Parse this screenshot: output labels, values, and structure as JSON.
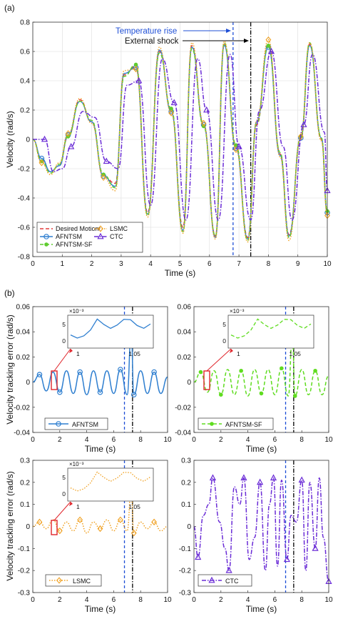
{
  "chart_data": [
    {
      "id": "a",
      "type": "line",
      "panel_label": "(a)",
      "xlabel": "Time (s)",
      "ylabel": "Velocity (rad/s)",
      "xlim": [
        0,
        10
      ],
      "ylim": [
        -0.8,
        0.8
      ],
      "xticks": [
        "0",
        "1",
        "2",
        "3",
        "4",
        "5",
        "6",
        "7",
        "8",
        "9",
        "10"
      ],
      "yticks": [
        "-0.8",
        "-0.6",
        "-0.4",
        "-0.2",
        "0",
        "0.2",
        "0.4",
        "0.6",
        "0.8"
      ],
      "grid": true,
      "legend_position": "bottom-left",
      "annotations": [
        {
          "text": "Temperature rise",
          "x": 6.8,
          "color": "#1f4fd6",
          "style": "dashed"
        },
        {
          "text": "External shock",
          "x": 7.4,
          "color": "#000000",
          "style": "dashdot"
        }
      ],
      "series": [
        {
          "name": "Desired Motiont",
          "color": "#e23b3b",
          "style": "dashed",
          "marker": "none",
          "x": [
            0,
            0.3,
            0.6,
            0.9,
            1.2,
            1.6,
            2.0,
            2.4,
            2.8,
            3.1,
            3.5,
            3.9,
            4.3,
            4.7,
            5.1,
            5.4,
            5.8,
            6.2,
            6.5,
            6.9,
            7.3,
            7.6,
            8.0,
            8.4,
            8.7,
            9.1,
            9.4,
            9.8,
            10
          ],
          "y": [
            0,
            -0.14,
            -0.22,
            -0.18,
            0.02,
            0.27,
            0.12,
            -0.25,
            -0.3,
            0.44,
            0.5,
            -0.5,
            0.6,
            0.2,
            -0.6,
            0.64,
            0.1,
            -0.66,
            0.65,
            -0.05,
            -0.67,
            0.1,
            0.65,
            -0.1,
            -0.65,
            0.0,
            0.65,
            0.0,
            -0.5
          ]
        },
        {
          "name": "AFNTSM",
          "color": "#2f7fd0",
          "style": "solid",
          "marker": "circle",
          "x": [
            0,
            0.3,
            0.6,
            0.9,
            1.2,
            1.6,
            2.0,
            2.4,
            2.8,
            3.1,
            3.5,
            3.9,
            4.3,
            4.7,
            5.1,
            5.4,
            5.8,
            6.2,
            6.5,
            6.9,
            7.3,
            7.6,
            8.0,
            8.4,
            8.7,
            9.1,
            9.4,
            9.8,
            10
          ],
          "y": [
            0,
            -0.13,
            -0.22,
            -0.18,
            0.03,
            0.26,
            0.12,
            -0.25,
            -0.32,
            0.45,
            0.49,
            -0.51,
            0.61,
            0.19,
            -0.62,
            0.63,
            0.1,
            -0.67,
            0.64,
            -0.06,
            -0.68,
            0.12,
            0.63,
            -0.11,
            -0.66,
            0.01,
            0.64,
            0.01,
            -0.5
          ]
        },
        {
          "name": "AFNTSM-SF",
          "color": "#5fcc2f",
          "style": "dashed",
          "marker": "dot",
          "x": [
            0,
            0.3,
            0.6,
            0.9,
            1.2,
            1.6,
            2.0,
            2.4,
            2.8,
            3.1,
            3.5,
            3.9,
            4.3,
            4.7,
            5.1,
            5.4,
            5.8,
            6.2,
            6.5,
            6.9,
            7.3,
            7.6,
            8.0,
            8.4,
            8.7,
            9.1,
            9.4,
            9.8,
            10
          ],
          "y": [
            0,
            -0.15,
            -0.23,
            -0.17,
            0.02,
            0.26,
            0.13,
            -0.24,
            -0.33,
            0.43,
            0.51,
            -0.52,
            0.59,
            0.21,
            -0.63,
            0.62,
            0.09,
            -0.66,
            0.66,
            -0.04,
            -0.69,
            0.11,
            0.64,
            -0.09,
            -0.67,
            0.02,
            0.66,
            0.01,
            -0.49
          ]
        },
        {
          "name": "LSMC",
          "color": "#f0a020",
          "style": "dotted",
          "marker": "diamond",
          "x": [
            0,
            0.3,
            0.6,
            0.9,
            1.2,
            1.6,
            2.0,
            2.4,
            2.8,
            3.1,
            3.5,
            3.9,
            4.3,
            4.7,
            5.1,
            5.4,
            5.8,
            6.2,
            6.5,
            6.9,
            7.3,
            7.6,
            8.0,
            8.4,
            8.7,
            9.1,
            9.4,
            9.8,
            10
          ],
          "y": [
            0,
            -0.16,
            -0.24,
            -0.16,
            0.04,
            0.28,
            0.11,
            -0.26,
            -0.35,
            0.47,
            0.48,
            -0.53,
            0.63,
            0.18,
            -0.64,
            0.66,
            0.11,
            -0.68,
            0.67,
            -0.07,
            -0.7,
            0.13,
            0.68,
            -0.12,
            -0.69,
            0.02,
            0.66,
            -0.01,
            -0.52
          ]
        },
        {
          "name": "CTC",
          "color": "#6a2bd6",
          "style": "dashdot",
          "marker": "triangle",
          "x": [
            0,
            0.4,
            0.7,
            1.0,
            1.3,
            1.7,
            2.1,
            2.5,
            2.9,
            3.2,
            3.6,
            4.0,
            4.4,
            4.8,
            5.2,
            5.6,
            5.9,
            6.3,
            6.7,
            7.0,
            7.4,
            7.7,
            8.1,
            8.5,
            8.8,
            9.2,
            9.5,
            9.9,
            10
          ],
          "y": [
            0,
            0,
            -0.22,
            -0.2,
            -0.05,
            0.19,
            0.15,
            -0.15,
            -0.2,
            0.37,
            0.4,
            -0.45,
            0.55,
            0.25,
            -0.55,
            0.55,
            0.2,
            -0.55,
            0.58,
            -0.05,
            -0.55,
            0.2,
            0.6,
            -0.05,
            -0.55,
            0.1,
            0.58,
            0.05,
            -0.35
          ]
        }
      ]
    },
    {
      "id": "b1",
      "type": "line",
      "panel_label": "(b)",
      "xlabel": "Time (s)",
      "ylabel": "Velocity tracking error (rad/s)",
      "xlim": [
        0,
        10
      ],
      "ylim": [
        -0.04,
        0.06
      ],
      "xticks": [
        "0",
        "2",
        "4",
        "6",
        "8",
        "10"
      ],
      "yticks": [
        "-0.04",
        "-0.02",
        "0",
        "0.02",
        "0.04",
        "0.06"
      ],
      "inset": {
        "xticks": [
          "1",
          "1.05"
        ],
        "yticks": [
          "0",
          "5"
        ],
        "exponent": "×10⁻³"
      },
      "series": [
        {
          "name": "AFNTSM",
          "color": "#2f7fd0",
          "style": "solid",
          "marker": "circle",
          "x": [
            0,
            0.5,
            1,
            1.5,
            2,
            2.5,
            3,
            3.5,
            4,
            4.5,
            5,
            5.5,
            6,
            6.5,
            7,
            7.3,
            7.5,
            8,
            8.5,
            9,
            9.5,
            10
          ],
          "y": [
            0,
            0.006,
            -0.007,
            0.008,
            -0.008,
            0.009,
            -0.009,
            0.008,
            -0.01,
            0.009,
            -0.008,
            0.009,
            -0.009,
            0.01,
            -0.01,
            0.038,
            -0.01,
            0.009,
            -0.009,
            0.008,
            -0.009,
            0.004
          ]
        }
      ]
    },
    {
      "id": "b2",
      "type": "line",
      "xlabel": "Time (s)",
      "ylabel": "",
      "xlim": [
        0,
        10
      ],
      "ylim": [
        -0.04,
        0.06
      ],
      "xticks": [
        "0",
        "2",
        "4",
        "6",
        "8",
        "10"
      ],
      "yticks": [
        "-0.04",
        "-0.02",
        "0",
        "0.02",
        "0.04",
        "0.06"
      ],
      "inset": {
        "xticks": [
          "1",
          "1.05"
        ],
        "yticks": [
          "0",
          "5"
        ],
        "exponent": "×10⁻³"
      },
      "series": [
        {
          "name": "AFNTSM-SF",
          "color": "#5fdc1f",
          "style": "dashed",
          "marker": "dot",
          "x": [
            0,
            0.5,
            1,
            1.5,
            2,
            2.5,
            3,
            3.5,
            4,
            4.5,
            5,
            5.5,
            6,
            6.5,
            7,
            7.3,
            7.5,
            8,
            8.5,
            9,
            9.5,
            10
          ],
          "y": [
            0,
            0.008,
            -0.008,
            0.009,
            -0.01,
            0.01,
            -0.01,
            0.009,
            -0.011,
            0.01,
            -0.009,
            0.01,
            -0.01,
            0.011,
            -0.011,
            0.037,
            -0.011,
            0.01,
            -0.01,
            0.009,
            -0.01,
            0.005
          ]
        }
      ]
    },
    {
      "id": "b3",
      "type": "line",
      "xlabel": "Time (s)",
      "ylabel": "Velocity tracking error (rad/s)",
      "xlim": [
        0,
        10
      ],
      "ylim": [
        -0.3,
        0.3
      ],
      "xticks": [
        "0",
        "2",
        "4",
        "6",
        "8",
        "10"
      ],
      "yticks": [
        "-0.3",
        "-0.2",
        "-0.1",
        "0",
        "0.1",
        "0.2",
        "0.3"
      ],
      "inset": {
        "xticks": [
          "1",
          "1.05"
        ],
        "yticks": [
          "0",
          "5"
        ],
        "exponent": "×10⁻³"
      },
      "series": [
        {
          "name": "LSMC",
          "color": "#f0a020",
          "style": "dotted",
          "marker": "diamond",
          "x": [
            0,
            0.5,
            1,
            1.5,
            2,
            2.5,
            3,
            3.5,
            4,
            4.5,
            5,
            5.5,
            6,
            6.5,
            7,
            7.3,
            7.5,
            8,
            8.5,
            9,
            9.5,
            10
          ],
          "y": [
            0,
            0.02,
            -0.01,
            0.03,
            -0.02,
            0.02,
            -0.02,
            0.03,
            -0.03,
            0.02,
            -0.01,
            0.03,
            -0.02,
            0.03,
            -0.02,
            0.16,
            -0.03,
            0.02,
            -0.01,
            0.02,
            -0.02,
            0.0
          ]
        }
      ]
    },
    {
      "id": "b4",
      "type": "line",
      "xlabel": "Time (s)",
      "ylabel": "",
      "xlim": [
        0,
        10
      ],
      "ylim": [
        -0.3,
        0.3
      ],
      "xticks": [
        "0",
        "2",
        "4",
        "6",
        "8",
        "10"
      ],
      "yticks": [
        "-0.3",
        "-0.2",
        "-0.1",
        "0",
        "0.1",
        "0.2",
        "0.3"
      ],
      "series": [
        {
          "name": "CTC",
          "color": "#6a2bd6",
          "style": "dashdot",
          "marker": "triangle",
          "x": [
            0,
            0.3,
            0.7,
            1.1,
            1.4,
            1.9,
            2.3,
            2.6,
            3.0,
            3.4,
            3.7,
            4.1,
            4.5,
            4.9,
            5.3,
            5.6,
            5.9,
            6.2,
            6.5,
            6.9,
            7.2,
            7.6,
            8.0,
            8.3,
            8.6,
            9.0,
            9.3,
            9.6,
            10
          ],
          "y": [
            0,
            -0.14,
            0.05,
            0.1,
            0.22,
            0.02,
            -0.1,
            -0.2,
            0.18,
            0.1,
            0.22,
            -0.15,
            -0.05,
            0.2,
            -0.2,
            0.1,
            0.22,
            -0.18,
            0.21,
            -0.15,
            0.05,
            0.02,
            0.21,
            -0.2,
            0.2,
            -0.1,
            0.22,
            -0.05,
            -0.25
          ]
        }
      ]
    }
  ]
}
